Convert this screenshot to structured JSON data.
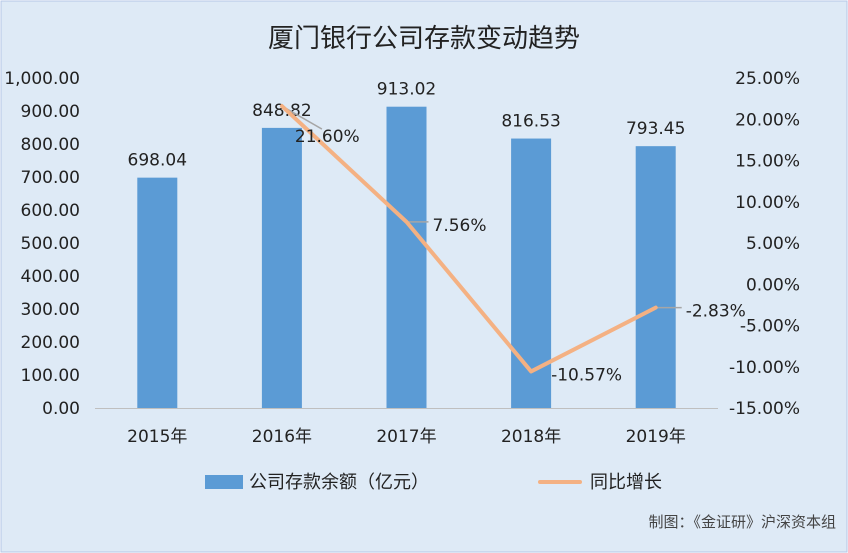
{
  "chart_data": {
    "type": "bar",
    "title": "厦门银行公司存款变动趋势",
    "categories": [
      "2015年",
      "2016年",
      "2017年",
      "2018年",
      "2019年"
    ],
    "series": [
      {
        "name": "公司存款余额（亿元）",
        "type": "bar",
        "axis": "left",
        "values": [
          698.04,
          848.82,
          913.02,
          816.53,
          793.45
        ],
        "labels": [
          "698.04",
          "848.82",
          "913.02",
          "816.53",
          "793.45"
        ],
        "color": "#5b9bd5"
      },
      {
        "name": "同比增长",
        "type": "line",
        "axis": "right",
        "points": [
          {
            "index": 1,
            "value": 21.6,
            "label": "21.60%"
          },
          {
            "index": 2,
            "value": 7.56,
            "label": "7.56%"
          },
          {
            "index": 3,
            "value": -10.57,
            "label": "-10.57%"
          },
          {
            "index": 4,
            "value": -2.83,
            "label": "-2.83%"
          }
        ],
        "color": "#f4b183"
      }
    ],
    "y_left": {
      "min": 0,
      "max": 1000,
      "step": 100,
      "ticks": [
        "0.00",
        "100.00",
        "200.00",
        "300.00",
        "400.00",
        "500.00",
        "600.00",
        "700.00",
        "800.00",
        "900.00",
        "1,000.00"
      ]
    },
    "y_right": {
      "min": -15,
      "max": 25,
      "step": 5,
      "ticks": [
        "-15.00%",
        "-10.00%",
        "-5.00%",
        "0.00%",
        "5.00%",
        "10.00%",
        "15.00%",
        "20.00%",
        "25.00%"
      ]
    },
    "grid": false,
    "legend_position": "bottom",
    "credit": "制图：《金证研》沪深资本组",
    "colors": {
      "background": "#deeaf6",
      "border": "#b4c7e7",
      "connector": "#a6a6a6"
    }
  }
}
